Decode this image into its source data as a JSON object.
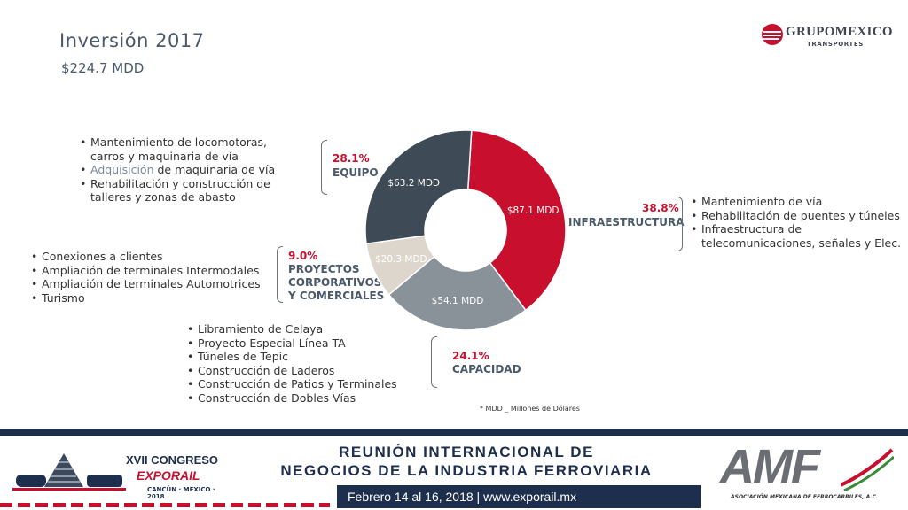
{
  "header": {
    "title": "Inversión 2017",
    "subtitle": "$224.7 MDD"
  },
  "logo": {
    "name": "GRUPOMEXICO",
    "sub": "TRANSPORTES"
  },
  "chart_data": {
    "type": "pie",
    "donut": true,
    "title": "Inversión 2017",
    "slices": [
      {
        "key": "infra",
        "percent": 38.8,
        "value_label": "$87.1 MDD",
        "category": "INFRAESTRUCTURA",
        "color": "#c8102e"
      },
      {
        "key": "cap",
        "percent": 24.1,
        "value_label": "$54.1 MDD",
        "category": "CAPACIDAD",
        "color": "#8a9299"
      },
      {
        "key": "proy",
        "percent": 9.0,
        "value_label": "$20.3 MDD",
        "category": "PROYECTOS CORPORATIVOS Y COMERCIALES",
        "color": "#ddd6cc"
      },
      {
        "key": "equipo",
        "percent": 28.1,
        "value_label": "$63.2 MDD",
        "category": "EQUIPO",
        "color": "#3e4b56"
      }
    ]
  },
  "equipo": {
    "pct": "28.1%",
    "cat": "EQUIPO",
    "items": [
      "Mantenimiento de locomotoras, carros y maquinaria de vía",
      "Adquisición de maquinaria de vía",
      "Rehabilitación y construcción de talleres y zonas de abasto"
    ]
  },
  "infra": {
    "pct": "38.8%",
    "cat": "INFRAESTRUCTURA",
    "items": [
      "Mantenimiento de vía",
      "Rehabilitación de puentes y túneles",
      "Infraestructura de telecomunicaciones, señales y Elec."
    ]
  },
  "proy": {
    "pct": "9.0%",
    "cat1": "PROYECTOS",
    "cat2": "CORPORATIVOS",
    "cat3": "Y COMERCIALES",
    "items": [
      "Conexiones a clientes",
      "Ampliación de terminales Intermodales",
      "Ampliación de terminales Automotrices",
      "Turismo"
    ]
  },
  "cap": {
    "pct": "24.1%",
    "cat": "CAPACIDAD",
    "items": [
      "Libramiento de Celaya",
      "Proyecto Especial Línea TA",
      "Túneles de Tepic",
      "Construcción de Laderos",
      "Construcción de Patios y Terminales",
      "Construcción de Dobles Vías"
    ]
  },
  "footnote": "* MDD _ Millones de Dólares",
  "footer": {
    "event_l1": "XVII CONGRESO",
    "event_l2": "EXPORAIL",
    "event_l3": "CANCÚN · MÉXICO · 2018",
    "meeting_l1": "REUNIÓN INTERNACIONAL DE",
    "meeting_l2": "NEGOCIOS DE LA INDUSTRIA FERROVIARIA",
    "dates": "Febrero 14 al 16, 2018 | www.exporail.mx",
    "amf_big": "AMF",
    "amf_small": "ASOCIACIÓN MEXICANA DE FERROCARRILES, A.C."
  },
  "colors": {
    "accent": "#c8102e",
    "navy": "#1e2f4d",
    "slate": "#4a5a6a"
  }
}
